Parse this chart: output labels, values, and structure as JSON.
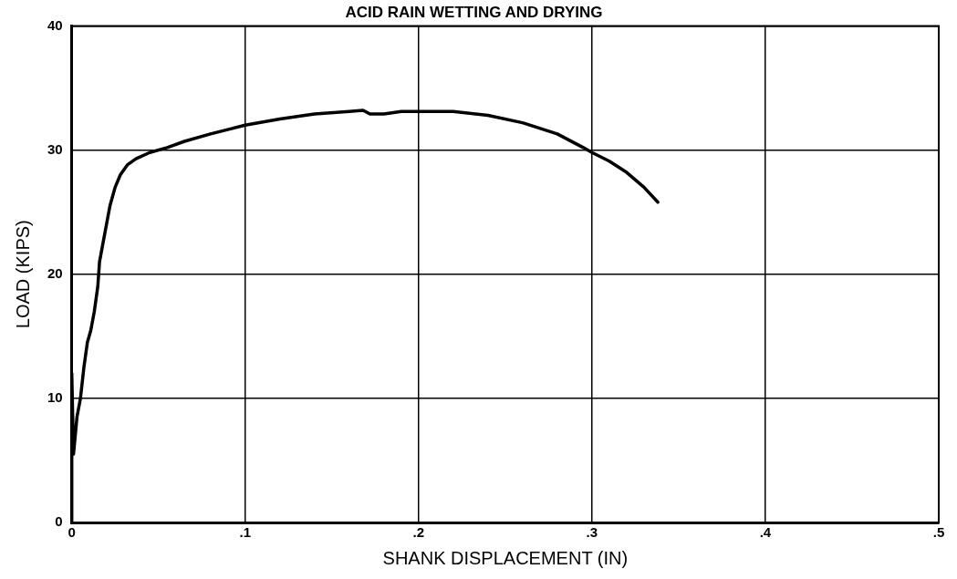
{
  "chart_data": {
    "type": "line",
    "title": "ACID RAIN WETTING AND DRYING",
    "xlabel": "SHANK DISPLACEMENT (IN)",
    "ylabel": "LOAD (KIPS)",
    "xlim": [
      0,
      0.5
    ],
    "ylim": [
      0,
      40
    ],
    "xticks": [
      0,
      {
        "value": 0.1,
        "label": ".1"
      },
      {
        "value": 0.2,
        "label": ".2"
      },
      {
        "value": 0.3,
        "label": ".3"
      },
      {
        "value": 0.4,
        "label": ".4"
      },
      {
        "value": 0.5,
        "label": ".5"
      }
    ],
    "yticks": [
      0,
      10,
      20,
      30,
      40
    ],
    "grid": true,
    "legend": false,
    "marker": "none",
    "line_style": "solid",
    "series": [
      {
        "color": "#000000",
        "x": [
          0,
          0,
          0.001,
          0.003,
          0.005,
          0.007,
          0.009,
          0.011,
          0.013,
          0.015,
          0.016,
          0.018,
          0.02,
          0.022,
          0.025,
          0.028,
          0.032,
          0.037,
          0.045,
          0.055,
          0.065,
          0.08,
          0.1,
          0.12,
          0.14,
          0.16,
          0.168,
          0.172,
          0.18,
          0.19,
          0.2,
          0.22,
          0.24,
          0.26,
          0.28,
          0.295,
          0.3,
          0.31,
          0.32,
          0.33,
          0.338
        ],
        "values": [
          0,
          12,
          5.5,
          8.5,
          10,
          12.5,
          14.5,
          15.5,
          17,
          19,
          21,
          22.5,
          24,
          25.5,
          27,
          28,
          28.8,
          29.3,
          29.8,
          30.2,
          30.7,
          31.3,
          32,
          32.5,
          32.9,
          33.1,
          33.2,
          32.9,
          32.9,
          33.1,
          33.1,
          33.1,
          32.8,
          32.2,
          31.3,
          30.2,
          29.8,
          29.1,
          28.2,
          27,
          25.8
        ]
      }
    ]
  }
}
